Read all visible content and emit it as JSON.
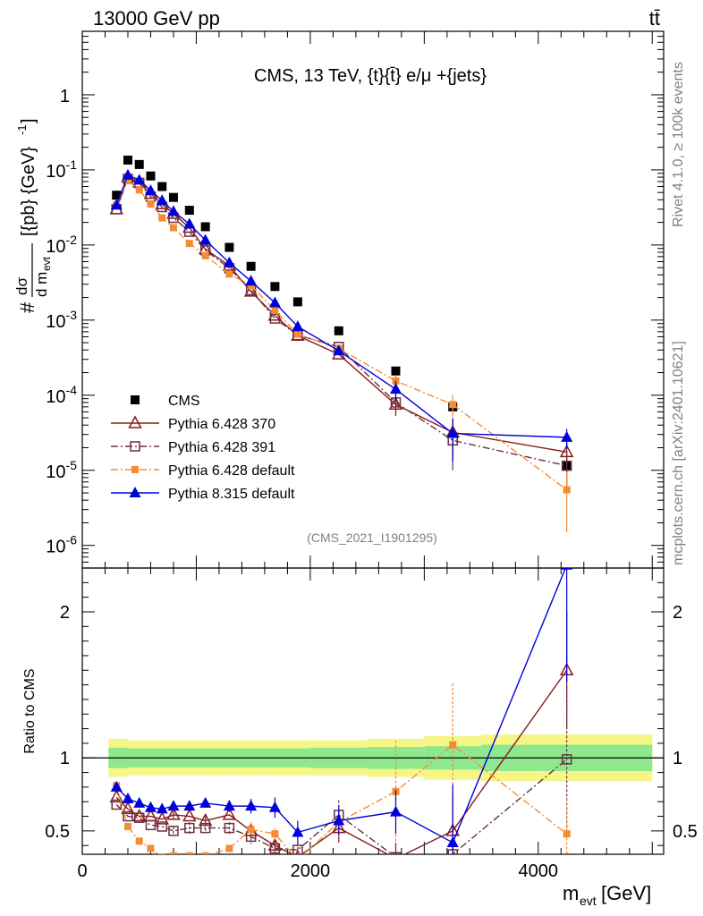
{
  "header": {
    "left": "13000 GeV pp",
    "right": "tt̄"
  },
  "title": "CMS, 13 TeV, {t}{t̄} e/μ +{jets}",
  "side_text": {
    "rivet": "Rivet 4.1.0, ≥ 100k events",
    "mcplots": "mcplots.cern.ch [arXiv:2401.10621]"
  },
  "analysis_id": "(CMS_2021_I1901295)",
  "chart_data": [
    {
      "type": "scatter",
      "title": "CMS, 13 TeV, {t}{t̄} e/μ +{jets}",
      "xlabel": "m_evt [GeV]",
      "ylabel": "#dσ/d m_evt [{pb} {GeV}^-1]",
      "yscale": "log",
      "xlim": [
        0,
        5100
      ],
      "ylim": [
        5e-07,
        7
      ],
      "yticks": [
        {
          "v": 1e-06,
          "base": "10",
          "exp": "-6"
        },
        {
          "v": 1e-05,
          "base": "10",
          "exp": "-5"
        },
        {
          "v": 0.0001,
          "base": "10",
          "exp": "-4"
        },
        {
          "v": 0.001,
          "base": "10",
          "exp": "-3"
        },
        {
          "v": 0.01,
          "base": "10",
          "exp": "-2"
        },
        {
          "v": 0.1,
          "base": "10",
          "exp": "-1"
        },
        {
          "v": 1,
          "base": "1",
          "exp": ""
        }
      ],
      "x": [
        300,
        400,
        500,
        600,
        700,
        800,
        940,
        1080,
        1290,
        1480,
        1690,
        1890,
        2250,
        2750,
        3250,
        4250
      ],
      "series": [
        {
          "name": "CMS",
          "color": "#000000",
          "marker": "square",
          "values": [
            0.046,
            0.135,
            0.118,
            0.083,
            0.06,
            0.043,
            0.029,
            0.0175,
            0.0093,
            0.0052,
            0.0028,
            0.00175,
            0.00072,
            0.00021,
            7e-05,
            1.15e-05
          ],
          "err": [
            0,
            0,
            0,
            0,
            0,
            0,
            0,
            0,
            0,
            0,
            0,
            0,
            0,
            0,
            0,
            0
          ]
        },
        {
          "name": "Pythia 6.428 370",
          "color": "#8b1a1a",
          "marker": "tri-open",
          "dash": "",
          "values": [
            0.03,
            0.08,
            0.068,
            0.048,
            0.035,
            0.026,
            0.017,
            0.0088,
            0.0053,
            0.0024,
            0.00115,
            0.00062,
            0.00035,
            7.5e-05,
            3.2e-05,
            1.75e-05
          ],
          "err": [
            0,
            0,
            0,
            0,
            0,
            0,
            0,
            0,
            0,
            0,
            0,
            0,
            0,
            2.2e-05,
            1.6e-05,
            6e-06
          ]
        },
        {
          "name": "Pythia 6.428 391",
          "color": "#6b3040",
          "marker": "square-open",
          "dash": "8 3 2 3",
          "values": [
            0.03,
            0.076,
            0.067,
            0.044,
            0.032,
            0.023,
            0.015,
            0.0085,
            0.0049,
            0.0025,
            0.00105,
            0.00063,
            0.00044,
            8e-05,
            2.5e-05,
            1.15e-05
          ],
          "err": [
            0,
            0,
            0,
            0,
            0,
            0,
            0,
            0,
            0,
            0,
            0,
            0,
            0,
            2.5e-05,
            1.5e-05,
            6e-06
          ]
        },
        {
          "name": "Pythia 6.428 default",
          "color": "#f58c32",
          "marker": "square-small",
          "dash": "8 3 2 3",
          "values": [
            0.034,
            0.072,
            0.054,
            0.035,
            0.023,
            0.017,
            0.0105,
            0.0072,
            0.0041,
            0.0029,
            0.00135,
            0.00065,
            0.00042,
            0.000155,
            7.5e-05,
            5.5e-06
          ],
          "err": [
            0,
            0,
            0,
            0,
            0,
            0,
            0,
            0,
            0,
            0,
            0,
            0,
            0,
            3e-05,
            2.5e-05,
            4e-06
          ]
        },
        {
          "name": "Pythia 8.315 default",
          "color": "#0000dd",
          "marker": "tri-filled",
          "dash": "",
          "values": [
            0.034,
            0.085,
            0.073,
            0.053,
            0.039,
            0.028,
            0.019,
            0.0116,
            0.0058,
            0.0033,
            0.0017,
            0.00082,
            0.00039,
            0.00012,
            3.1e-05,
            2.75e-05
          ],
          "err": [
            0,
            0,
            0,
            0,
            0,
            0,
            0,
            0,
            0,
            0,
            0,
            0.00012,
            0,
            3.5e-05,
            1.8e-05,
            8e-06
          ]
        }
      ]
    },
    {
      "type": "scatter",
      "xlabel": "m_evt [GeV]",
      "ylabel": "Ratio to CMS",
      "xlim": [
        0,
        5100
      ],
      "ylim": [
        0.34,
        2.3
      ],
      "xticks": [
        0,
        2000,
        4000
      ],
      "yticks": [
        0.5,
        1,
        2
      ],
      "band_edges": [
        230,
        400,
        500,
        600,
        700,
        800,
        900,
        1000,
        1150,
        1350,
        1550,
        1800,
        2000,
        2500,
        3000,
        3500,
        4000,
        5000
      ],
      "band_inner": [
        0.07,
        0.065,
        0.065,
        0.065,
        0.065,
        0.065,
        0.065,
        0.065,
        0.065,
        0.065,
        0.065,
        0.065,
        0.07,
        0.075,
        0.08,
        0.09,
        0.09
      ],
      "band_outer": [
        0.13,
        0.12,
        0.12,
        0.12,
        0.12,
        0.12,
        0.12,
        0.12,
        0.12,
        0.12,
        0.12,
        0.12,
        0.12,
        0.13,
        0.15,
        0.16,
        0.16
      ],
      "x": [
        300,
        400,
        500,
        600,
        700,
        800,
        940,
        1080,
        1290,
        1480,
        1690,
        1890,
        2250,
        2750,
        3250,
        4250
      ],
      "series": [
        {
          "name": "Pythia 6.428 370",
          "color": "#8b1a1a",
          "marker": "tri-open",
          "dash": "",
          "values": [
            0.73,
            0.65,
            0.6,
            0.6,
            0.58,
            0.61,
            0.6,
            0.57,
            0.61,
            0.5,
            0.4,
            0.32,
            0.52,
            0.31,
            0.5,
            1.6
          ],
          "err": [
            0,
            0,
            0,
            0,
            0,
            0.03,
            0,
            0.03,
            0,
            0.05,
            0.04,
            0.05,
            0.1,
            0.1,
            0.25,
            0.4
          ]
        },
        {
          "name": "Pythia 6.428 391",
          "color": "#6b3040",
          "marker": "square-open",
          "dash": "8 3 2 3",
          "values": [
            0.68,
            0.6,
            0.59,
            0.54,
            0.53,
            0.5,
            0.52,
            0.52,
            0.52,
            0.46,
            0.38,
            0.37,
            0.61,
            0.32,
            0.34,
            0.99
          ],
          "err": [
            0,
            0,
            0,
            0,
            0,
            0.03,
            0.04,
            0.03,
            0.04,
            0.05,
            0.04,
            0.05,
            0.1,
            0.1,
            0.2,
            0.5
          ]
        },
        {
          "name": "Pythia 6.428 default",
          "color": "#f58c32",
          "marker": "square-small",
          "dash": "8 3 2 3",
          "values": [
            0.81,
            0.53,
            0.43,
            0.38,
            0.32,
            0.33,
            0.33,
            0.33,
            0.38,
            0.51,
            0.48,
            0.3,
            0.56,
            0.77,
            1.09,
            0.48
          ],
          "err": [
            0.02,
            0,
            0,
            0,
            0,
            0,
            0,
            0,
            0,
            0.05,
            0.04,
            0.05,
            0.1,
            0.35,
            0.42,
            0.25
          ]
        },
        {
          "name": "Pythia 8.315 default",
          "color": "#0000dd",
          "marker": "tri-filled",
          "dash": "",
          "values": [
            0.8,
            0.72,
            0.69,
            0.66,
            0.65,
            0.67,
            0.67,
            0.69,
            0.67,
            0.67,
            0.66,
            0.49,
            0.57,
            0.63,
            0.42,
            2.32
          ],
          "err": [
            0,
            0,
            0,
            0.03,
            0.02,
            0.03,
            0.03,
            0.03,
            0.04,
            0.05,
            0.07,
            0.08,
            0.1,
            0.15,
            0.4,
            0.8
          ]
        }
      ]
    }
  ]
}
